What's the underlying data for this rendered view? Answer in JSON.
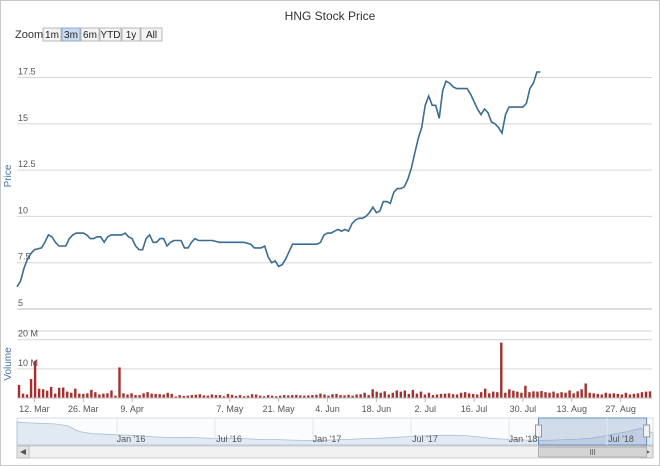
{
  "chart_data": {
    "type": "line",
    "title": "HNG Stock Price",
    "zoom": {
      "label": "Zoom",
      "buttons": [
        "1m",
        "3m",
        "6m",
        "YTD",
        "1y",
        "All"
      ],
      "active": "3m"
    },
    "price": {
      "ylabel": "Price",
      "ylim": [
        5,
        18.5
      ],
      "yticks": [
        "5",
        "7.5",
        "10",
        "12.5",
        "15",
        "17.5"
      ],
      "grid": true,
      "color": "#3b6c94",
      "series": [
        {
          "d": 0,
          "v": 6.2
        },
        {
          "d": 1,
          "v": 6.5
        },
        {
          "d": 2,
          "v": 7.2
        },
        {
          "d": 3,
          "v": 7.7
        },
        {
          "d": 4,
          "v": 8.0
        },
        {
          "d": 5,
          "v": 8.2
        },
        {
          "d": 7,
          "v": 8.3
        },
        {
          "d": 8,
          "v": 8.6
        },
        {
          "d": 9,
          "v": 9.0
        },
        {
          "d": 10,
          "v": 8.9
        },
        {
          "d": 11,
          "v": 8.6
        },
        {
          "d": 12,
          "v": 8.4
        },
        {
          "d": 13,
          "v": 8.4
        },
        {
          "d": 14,
          "v": 8.4
        },
        {
          "d": 15,
          "v": 8.8
        },
        {
          "d": 16,
          "v": 9.0
        },
        {
          "d": 17,
          "v": 9.1
        },
        {
          "d": 18,
          "v": 9.1
        },
        {
          "d": 19,
          "v": 9.1
        },
        {
          "d": 20,
          "v": 9.0
        },
        {
          "d": 21,
          "v": 8.8
        },
        {
          "d": 22,
          "v": 8.8
        },
        {
          "d": 23,
          "v": 8.9
        },
        {
          "d": 24,
          "v": 8.9
        },
        {
          "d": 25,
          "v": 8.6
        },
        {
          "d": 26,
          "v": 8.9
        },
        {
          "d": 27,
          "v": 9.0
        },
        {
          "d": 28,
          "v": 9.0
        },
        {
          "d": 29,
          "v": 9.0
        },
        {
          "d": 30,
          "v": 9.0
        },
        {
          "d": 31,
          "v": 9.1
        },
        {
          "d": 32,
          "v": 8.9
        },
        {
          "d": 33,
          "v": 8.8
        },
        {
          "d": 34,
          "v": 8.4
        },
        {
          "d": 35,
          "v": 8.2
        },
        {
          "d": 36,
          "v": 8.2
        },
        {
          "d": 37,
          "v": 8.8
        },
        {
          "d": 38,
          "v": 9.0
        },
        {
          "d": 39,
          "v": 8.6
        },
        {
          "d": 40,
          "v": 8.6
        },
        {
          "d": 41,
          "v": 8.8
        },
        {
          "d": 42,
          "v": 8.8
        },
        {
          "d": 43,
          "v": 8.4
        },
        {
          "d": 44,
          "v": 8.6
        },
        {
          "d": 45,
          "v": 8.7
        },
        {
          "d": 46,
          "v": 8.7
        },
        {
          "d": 47,
          "v": 8.7
        },
        {
          "d": 48,
          "v": 8.3
        },
        {
          "d": 49,
          "v": 8.3
        },
        {
          "d": 50,
          "v": 8.6
        },
        {
          "d": 51,
          "v": 8.8
        },
        {
          "d": 52,
          "v": 8.7
        },
        {
          "d": 53,
          "v": 8.7
        },
        {
          "d": 54,
          "v": 8.7
        },
        {
          "d": 55,
          "v": 8.7
        },
        {
          "d": 56,
          "v": 8.7
        },
        {
          "d": 58,
          "v": 8.6
        },
        {
          "d": 61,
          "v": 8.6
        },
        {
          "d": 63,
          "v": 8.6
        },
        {
          "d": 65,
          "v": 8.6
        },
        {
          "d": 67,
          "v": 8.5
        },
        {
          "d": 68,
          "v": 8.3
        },
        {
          "d": 69,
          "v": 8.3
        },
        {
          "d": 70,
          "v": 8.3
        },
        {
          "d": 71,
          "v": 8.4
        },
        {
          "d": 72,
          "v": 7.8
        },
        {
          "d": 73,
          "v": 7.5
        },
        {
          "d": 74,
          "v": 7.6
        },
        {
          "d": 75,
          "v": 7.3
        },
        {
          "d": 76,
          "v": 7.4
        },
        {
          "d": 77,
          "v": 7.7
        },
        {
          "d": 78,
          "v": 8.1
        },
        {
          "d": 79,
          "v": 8.5
        },
        {
          "d": 80,
          "v": 8.5
        },
        {
          "d": 82,
          "v": 8.5
        },
        {
          "d": 84,
          "v": 8.5
        },
        {
          "d": 85,
          "v": 8.5
        },
        {
          "d": 86,
          "v": 8.5
        },
        {
          "d": 87,
          "v": 8.6
        },
        {
          "d": 88,
          "v": 9.0
        },
        {
          "d": 89,
          "v": 9.1
        },
        {
          "d": 90,
          "v": 9.1
        },
        {
          "d": 91,
          "v": 9.2
        },
        {
          "d": 92,
          "v": 9.3
        },
        {
          "d": 93,
          "v": 9.2
        },
        {
          "d": 94,
          "v": 9.3
        },
        {
          "d": 95,
          "v": 9.2
        },
        {
          "d": 96,
          "v": 9.6
        },
        {
          "d": 97,
          "v": 9.8
        },
        {
          "d": 98,
          "v": 9.9
        },
        {
          "d": 99,
          "v": 9.9
        },
        {
          "d": 100,
          "v": 10.0
        },
        {
          "d": 101,
          "v": 10.2
        },
        {
          "d": 102,
          "v": 10.5
        },
        {
          "d": 103,
          "v": 10.2
        },
        {
          "d": 104,
          "v": 10.3
        },
        {
          "d": 105,
          "v": 10.8
        },
        {
          "d": 106,
          "v": 10.8
        },
        {
          "d": 107,
          "v": 10.7
        },
        {
          "d": 108,
          "v": 11.3
        },
        {
          "d": 109,
          "v": 11.5
        },
        {
          "d": 110,
          "v": 11.5
        },
        {
          "d": 111,
          "v": 11.6
        },
        {
          "d": 112,
          "v": 12.0
        },
        {
          "d": 113,
          "v": 12.6
        },
        {
          "d": 114,
          "v": 13.4
        },
        {
          "d": 115,
          "v": 14.2
        },
        {
          "d": 116,
          "v": 14.8
        },
        {
          "d": 117,
          "v": 16.0
        },
        {
          "d": 118,
          "v": 16.5
        },
        {
          "d": 119,
          "v": 16.0
        },
        {
          "d": 120,
          "v": 16.0
        },
        {
          "d": 121,
          "v": 15.3
        },
        {
          "d": 122,
          "v": 16.8
        },
        {
          "d": 123,
          "v": 17.3
        },
        {
          "d": 124,
          "v": 17.2
        },
        {
          "d": 125,
          "v": 17.0
        },
        {
          "d": 126,
          "v": 16.9
        },
        {
          "d": 127,
          "v": 16.9
        },
        {
          "d": 128,
          "v": 16.9
        },
        {
          "d": 129,
          "v": 16.9
        },
        {
          "d": 130,
          "v": 16.6
        },
        {
          "d": 131,
          "v": 16.2
        },
        {
          "d": 132,
          "v": 15.8
        },
        {
          "d": 133,
          "v": 15.5
        },
        {
          "d": 134,
          "v": 15.8
        },
        {
          "d": 135,
          "v": 15.6
        },
        {
          "d": 136,
          "v": 15.1
        },
        {
          "d": 137,
          "v": 15.0
        },
        {
          "d": 138,
          "v": 14.8
        },
        {
          "d": 139,
          "v": 14.5
        },
        {
          "d": 140,
          "v": 15.5
        },
        {
          "d": 141,
          "v": 15.9
        },
        {
          "d": 142,
          "v": 15.9
        },
        {
          "d": 143,
          "v": 15.9
        },
        {
          "d": 144,
          "v": 15.9
        },
        {
          "d": 145,
          "v": 15.9
        },
        {
          "d": 146,
          "v": 16.1
        },
        {
          "d": 147,
          "v": 16.9
        },
        {
          "d": 148,
          "v": 17.2
        },
        {
          "d": 149,
          "v": 17.8
        },
        {
          "d": 150,
          "v": 17.8
        }
      ]
    },
    "volume": {
      "ylabel": "Volume",
      "ylim": [
        0,
        23
      ],
      "yticks": [
        "10 M",
        "20 M"
      ],
      "color": "#a3302e",
      "values": [
        4.5,
        1.5,
        1.2,
        6.5,
        12.8,
        3.2,
        3.0,
        2.5,
        3.8,
        1.5,
        3.5,
        3.6,
        2.2,
        1.8,
        3.2,
        1.5,
        1.4,
        1.6,
        2.8,
        2.0,
        1.2,
        1.5,
        1.6,
        2.6,
        0.8,
        10.5,
        1.6,
        1.2,
        1.6,
        1.0,
        1.0,
        1.6,
        2.0,
        1.5,
        1.4,
        1.3,
        1.2,
        1.8,
        1.4,
        0.5,
        1.0,
        0.7,
        0.8,
        1.0,
        1.1,
        1.3,
        0.9,
        0.8,
        1.2,
        1.0,
        1.0,
        0.6,
        1.4,
        1.1,
        0.7,
        1.0,
        0.6,
        0.8,
        1.3,
        1.2,
        0.8,
        0.6,
        1.0,
        0.8,
        0.6,
        0.8,
        1.0,
        0.9,
        1.0,
        1.1,
        0.9,
        0.8,
        0.9,
        1.0,
        1.1,
        1.5,
        1.2,
        0.8,
        1.3,
        1.4,
        1.0,
        0.9,
        1.1,
        0.8,
        1.2,
        1.3,
        1.8,
        1.0,
        3.0,
        2.2,
        1.8,
        2.3,
        1.2,
        1.8,
        2.6,
        2.2,
        2.6,
        1.4,
        2.8,
        1.5,
        2.2,
        1.2,
        1.8,
        1.0,
        1.2,
        1.4,
        1.5,
        1.6,
        1.3,
        1.2,
        1.8,
        2.0,
        1.6,
        1.4,
        1.2,
        2.0,
        3.2,
        1.6,
        2.2,
        2.0,
        19.0,
        1.8,
        3.0,
        2.5,
        2.2,
        1.8,
        4.2,
        2.0,
        2.3,
        2.2,
        2.4,
        2.0,
        1.8,
        2.2,
        1.6,
        2.0,
        1.8,
        2.6,
        1.6,
        2.3,
        3.0,
        5.0,
        1.8,
        1.6,
        1.4,
        1.2,
        1.8,
        1.5,
        1.6,
        1.4,
        1.2,
        1.8,
        1.2,
        1.4,
        1.6,
        2.0,
        2.2,
        2.3
      ]
    },
    "x_ticks": [
      {
        "d": 5,
        "label": "12. Mar"
      },
      {
        "d": 19,
        "label": "26. Mar"
      },
      {
        "d": 33,
        "label": "9. Apr"
      },
      {
        "d": 61,
        "label": "7. May"
      },
      {
        "d": 75,
        "label": "21. May"
      },
      {
        "d": 89,
        "label": "4. Jun"
      },
      {
        "d": 103,
        "label": "18. Jun"
      },
      {
        "d": 117,
        "label": "2. Jul"
      },
      {
        "d": 131,
        "label": "16. Jul"
      },
      {
        "d": 145,
        "label": "30. Jul"
      },
      {
        "d": 159,
        "label": "13. Aug"
      },
      {
        "d": 173,
        "label": "27. Aug"
      }
    ],
    "x_days": 182,
    "navigator": {
      "labels": [
        "Jan '16",
        "Jul '16",
        "Jan '17",
        "Jul '17",
        "Jan '18",
        "Jul '18"
      ],
      "selected_range": [
        0.82,
        0.99
      ],
      "profile": [
        0.85,
        0.82,
        0.8,
        0.78,
        0.72,
        0.5,
        0.42,
        0.4,
        0.38,
        0.36,
        0.34,
        0.3,
        0.28,
        0.27,
        0.28,
        0.26,
        0.24,
        0.25,
        0.24,
        0.22,
        0.2,
        0.2,
        0.18,
        0.17,
        0.16,
        0.18,
        0.2,
        0.22,
        0.24,
        0.25,
        0.27,
        0.3,
        0.33,
        0.34,
        0.36,
        0.36,
        0.35,
        0.3,
        0.25,
        0.22,
        0.2,
        0.18,
        0.17,
        0.18,
        0.2,
        0.22,
        0.25,
        0.33,
        0.42,
        0.5,
        0.62,
        0.45
      ]
    }
  }
}
